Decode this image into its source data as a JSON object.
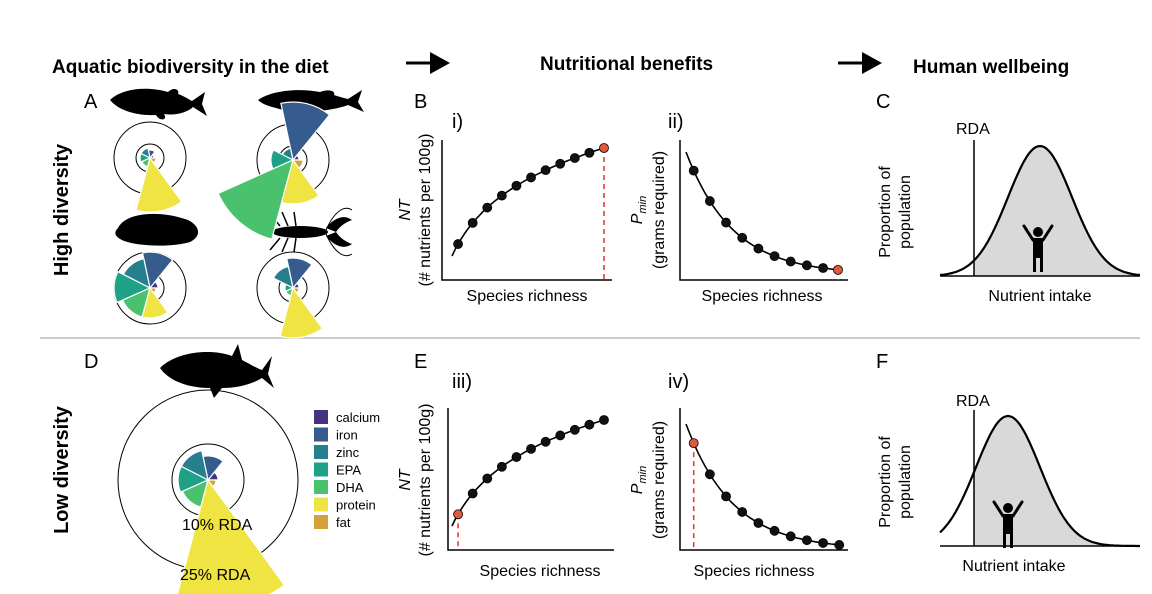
{
  "headers": {
    "diet": "Aquatic biodiversity in the diet",
    "benefits": "Nutritional benefits",
    "wellbeing": "Human wellbeing"
  },
  "rows": {
    "high": "High diversity",
    "low": "Low diversity"
  },
  "panels": {
    "A": "A",
    "B": "B",
    "C": "C",
    "D": "D",
    "E": "E",
    "F": "F",
    "i": "i)",
    "ii": "ii)",
    "iii": "iii)",
    "iv": "iv)"
  },
  "axes": {
    "nt_main": "NT",
    "nt_sub": "(# nutrients per 100g)",
    "pmin_main": "P",
    "pmin_subscript": "min",
    "pmin_sub": "(grams required)",
    "species_richness": "Species richness",
    "proportion_line1": "Proportion of",
    "proportion_line2": "population",
    "nutrient_intake": "Nutrient intake",
    "rda": "RDA"
  },
  "rings": {
    "inner": "10% RDA",
    "outer": "25% RDA"
  },
  "legend": [
    {
      "label": "calcium",
      "color": "#46327e"
    },
    {
      "label": "iron",
      "color": "#365c8d"
    },
    {
      "label": "zinc",
      "color": "#277f8e"
    },
    {
      "label": "EPA",
      "color": "#1fa187"
    },
    {
      "label": "DHA",
      "color": "#4ac16d"
    },
    {
      "label": "protein",
      "color": "#f0e442"
    },
    {
      "label": "fat",
      "color": "#d4a23c"
    }
  ],
  "colors": {
    "dot": "#111111",
    "highlight_dot": "#e05b3c",
    "dashed_line": "#d9453a",
    "bell_fill": "#d9d9d9",
    "divider": "#cccccc"
  },
  "icons": [
    "fish-icon",
    "mussel-icon",
    "lobster-icon",
    "tuna-icon",
    "person-icon",
    "arrow-right-icon"
  ]
}
